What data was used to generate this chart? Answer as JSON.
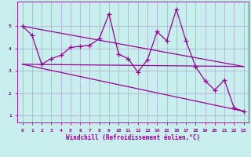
{
  "xlabel": "Windchill (Refroidissement éolien,°C)",
  "background_color": "#c8eeee",
  "line_color": "#990099",
  "grid_color": "#aaaacc",
  "xlim": [
    -0.5,
    23.5
  ],
  "ylim": [
    0.7,
    6.1
  ],
  "xticks": [
    0,
    1,
    2,
    3,
    4,
    5,
    6,
    7,
    8,
    9,
    10,
    11,
    12,
    13,
    14,
    15,
    16,
    17,
    18,
    19,
    20,
    21,
    22,
    23
  ],
  "yticks": [
    1,
    2,
    3,
    4,
    5
  ],
  "main_x": [
    0,
    1,
    2,
    3,
    4,
    5,
    6,
    7,
    8,
    9,
    10,
    11,
    12,
    13,
    14,
    15,
    16,
    17,
    18,
    19,
    20,
    21,
    22,
    23
  ],
  "main_y": [
    5.0,
    4.6,
    3.3,
    3.55,
    3.7,
    4.05,
    4.1,
    4.15,
    4.45,
    5.55,
    3.75,
    3.55,
    2.95,
    3.5,
    4.75,
    4.35,
    5.75,
    4.35,
    3.2,
    2.55,
    2.15,
    2.6,
    1.35,
    1.2
  ],
  "trend1_x": [
    0,
    23
  ],
  "trend1_y": [
    3.3,
    3.2
  ],
  "trend2_x": [
    0,
    23
  ],
  "trend2_y": [
    3.3,
    1.2
  ],
  "trend3_x": [
    0,
    23
  ],
  "trend3_y": [
    5.0,
    3.2
  ],
  "marker": "+",
  "markersize": 4,
  "linewidth": 0.9,
  "tick_fontsize": 4.5,
  "xlabel_fontsize": 5.5
}
